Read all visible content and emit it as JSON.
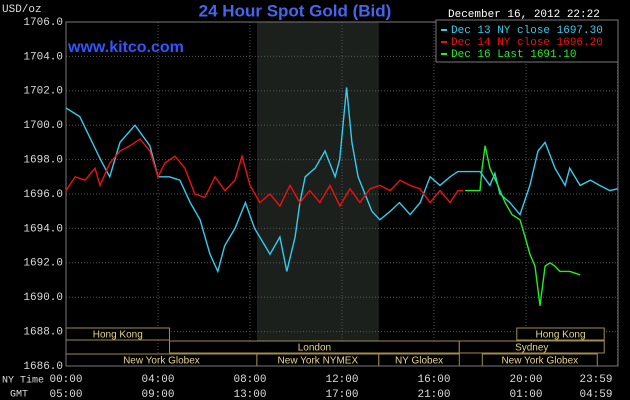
{
  "chart_data": {
    "type": "line",
    "title": "24 Hour Spot Gold (Bid)",
    "y_label": "USD/oz",
    "watermark": "www.kitco.com",
    "timestamp": "December 16, 2012 22:22",
    "x_label": "NY Time",
    "x2_label": "GMT",
    "xlim": [
      0,
      24
    ],
    "ylim": [
      1686,
      1706
    ],
    "grid": true,
    "legend": "top-right",
    "xticks": [
      {
        "value": 0,
        "label": "00:00"
      },
      {
        "value": 4,
        "label": "04:00"
      },
      {
        "value": 8,
        "label": "08:00"
      },
      {
        "value": 12,
        "label": "12:00"
      },
      {
        "value": 16,
        "label": "16:00"
      },
      {
        "value": 20,
        "label": "20:00"
      },
      {
        "value": 23.98,
        "label": "23:59"
      }
    ],
    "x2ticks": [
      {
        "value": 0,
        "label": "05:00"
      },
      {
        "value": 4,
        "label": "09:00"
      },
      {
        "value": 8,
        "label": "13:00"
      },
      {
        "value": 12,
        "label": "17:00"
      },
      {
        "value": 16,
        "label": "21:00"
      },
      {
        "value": 20,
        "label": "01:00"
      },
      {
        "value": 23.98,
        "label": "04:59"
      }
    ],
    "yticks": [
      {
        "value": 1686,
        "label": "1686.0"
      },
      {
        "value": 1688,
        "label": "1688.0"
      },
      {
        "value": 1690,
        "label": "1690.0"
      },
      {
        "value": 1692,
        "label": "1692.0"
      },
      {
        "value": 1694,
        "label": "1694.0"
      },
      {
        "value": 1696,
        "label": "1696.0"
      },
      {
        "value": 1698,
        "label": "1698.0"
      },
      {
        "value": 1700,
        "label": "1700.0"
      },
      {
        "value": 1702,
        "label": "1702.0"
      },
      {
        "value": 1704,
        "label": "1704.0"
      },
      {
        "value": 1706,
        "label": "1706.0"
      }
    ],
    "highlight_range": [
      8.3,
      13.6
    ],
    "sessions": [
      {
        "name": "Hong Kong",
        "start": 0,
        "end": 4.5
      },
      {
        "name": "Hong Kong",
        "start": 19.6,
        "end": 23.4
      },
      {
        "name": "London",
        "start": 4.5,
        "end": 17.1
      },
      {
        "name": "Sydney",
        "start": 17.1,
        "end": 23.4
      },
      {
        "name": "New York Globex",
        "start": 0,
        "end": 8.3
      },
      {
        "name": "New York NYMEX",
        "start": 8.3,
        "end": 13.6
      },
      {
        "name": "NY Globex",
        "start": 13.6,
        "end": 17.1
      },
      {
        "name": "New York Globex",
        "start": 18.1,
        "end": 23.1
      }
    ],
    "series": [
      {
        "name": "Dec 13 NY close 1697.30",
        "color": "#33ccee",
        "x": [
          0,
          0.6,
          1.5,
          1.9,
          2.35,
          3.0,
          3.65,
          4.0,
          4.5,
          4.95,
          5.4,
          5.83,
          6.26,
          6.6,
          6.9,
          7.35,
          7.8,
          8.2,
          8.65,
          8.87,
          9.3,
          9.6,
          9.96,
          10.17,
          10.4,
          10.83,
          11.26,
          11.7,
          11.9,
          12.2,
          12.43,
          12.7,
          13.0,
          13.3,
          13.65,
          14.1,
          14.5,
          14.96,
          15.4,
          15.83,
          16.26,
          16.7,
          17.04,
          18.0,
          18.43,
          18.65,
          18.87,
          19.3,
          19.74,
          20.17,
          20.52,
          20.83,
          21.26,
          21.7,
          21.9,
          22.35,
          22.8,
          23.2,
          23.65,
          23.98
        ],
        "values": [
          1701,
          1700.5,
          1698,
          1697,
          1699,
          1700,
          1698.8,
          1697,
          1697,
          1696.8,
          1695.5,
          1694.5,
          1692.5,
          1691.5,
          1693,
          1694,
          1695.5,
          1694,
          1693,
          1692.5,
          1693.5,
          1691.5,
          1693.5,
          1695.5,
          1697,
          1697.5,
          1698.5,
          1697,
          1698,
          1702.2,
          1699,
          1697,
          1696,
          1695,
          1694.5,
          1695,
          1695.5,
          1694.8,
          1695.5,
          1697,
          1696.5,
          1697,
          1697.3,
          1697.3,
          1696.5,
          1697.2,
          1696,
          1695.5,
          1694.8,
          1696.5,
          1698.5,
          1699,
          1697.5,
          1696.5,
          1697.5,
          1696.5,
          1696.8,
          1696.5,
          1696.2,
          1696.3
        ]
      },
      {
        "name": "Dec 14 NY close 1696.20",
        "color": "#ee1111",
        "x": [
          0,
          0.4,
          0.83,
          1.26,
          1.48,
          1.91,
          2.35,
          2.78,
          3.22,
          3.65,
          4.0,
          4.3,
          4.74,
          5.17,
          5.6,
          6.04,
          6.48,
          6.91,
          7.35,
          7.65,
          8.0,
          8.43,
          8.87,
          9.3,
          9.74,
          10.17,
          10.6,
          11.04,
          11.48,
          11.91,
          12.35,
          12.78,
          13.22,
          13.65,
          14.09,
          14.52,
          14.96,
          15.39,
          15.83,
          16.26,
          16.7,
          17.04,
          17.26
        ],
        "values": [
          1696.2,
          1697,
          1696.8,
          1697.5,
          1696.5,
          1697.8,
          1698.5,
          1698.8,
          1699.2,
          1698.5,
          1697,
          1697.8,
          1698.2,
          1697.5,
          1696,
          1695.8,
          1697,
          1696.2,
          1696.8,
          1698.2,
          1696.5,
          1695.5,
          1696,
          1695.3,
          1696.5,
          1695.5,
          1696.2,
          1695.5,
          1696.5,
          1695.3,
          1696.3,
          1695.5,
          1696.3,
          1696.5,
          1696.2,
          1696.8,
          1696.5,
          1696.3,
          1695.5,
          1696.2,
          1695.5,
          1696.2,
          1696.2
        ]
      },
      {
        "name": "Dec 16 Last 1691.10",
        "color": "#22ee22",
        "x": [
          17.35,
          18.0,
          18.09,
          18.22,
          18.43,
          18.78,
          19.09,
          19.39,
          19.74,
          19.96,
          20.17,
          20.39,
          20.61,
          20.83,
          21.04,
          21.26,
          21.48,
          21.91,
          22.35
        ],
        "values": [
          1696.2,
          1696.2,
          1697.5,
          1698.8,
          1697.5,
          1696.5,
          1695.5,
          1694.8,
          1694.5,
          1693.5,
          1692.5,
          1691.8,
          1689.5,
          1691.8,
          1692,
          1691.8,
          1691.5,
          1691.5,
          1691.3
        ]
      }
    ]
  }
}
